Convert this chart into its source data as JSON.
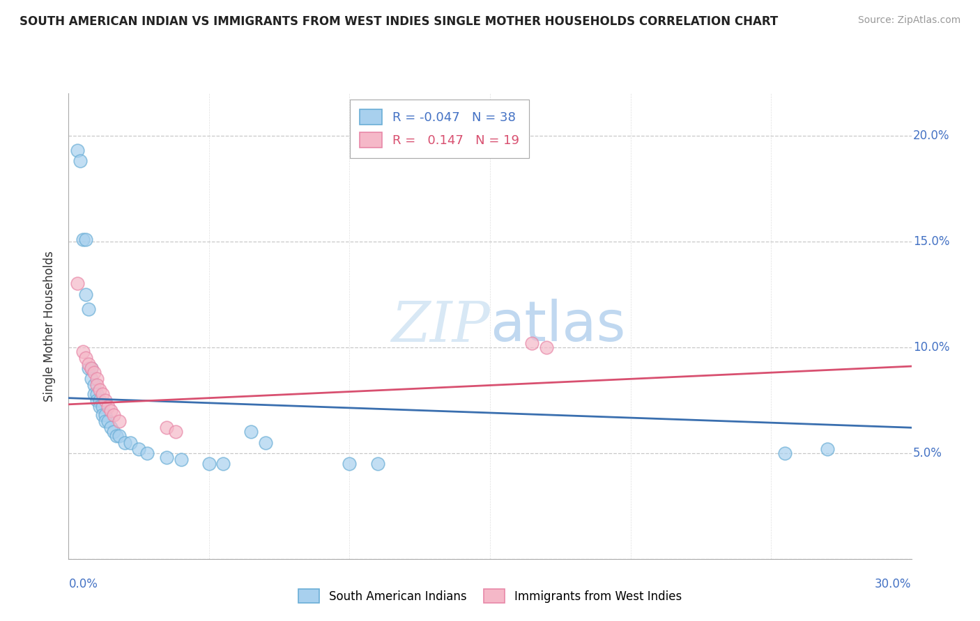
{
  "title": "SOUTH AMERICAN INDIAN VS IMMIGRANTS FROM WEST INDIES SINGLE MOTHER HOUSEHOLDS CORRELATION CHART",
  "source": "Source: ZipAtlas.com",
  "ylabel": "Single Mother Households",
  "blue_label": "South American Indians",
  "pink_label": "Immigrants from West Indies",
  "blue_R": -0.047,
  "blue_N": 38,
  "pink_R": 0.147,
  "pink_N": 19,
  "blue_color": "#a8d0ee",
  "pink_color": "#f5b8c8",
  "blue_edge_color": "#6aaed6",
  "pink_edge_color": "#e888a8",
  "blue_line_color": "#3a6faf",
  "pink_line_color": "#d85070",
  "watermark_color": "#d8e8f5",
  "xlim": [
    0.0,
    0.3
  ],
  "ylim": [
    0.0,
    0.22
  ],
  "blue_line_x": [
    0.0,
    0.3
  ],
  "blue_line_y": [
    0.076,
    0.062
  ],
  "pink_line_x": [
    0.0,
    0.3
  ],
  "pink_line_y": [
    0.073,
    0.091
  ],
  "blue_points": [
    [
      0.003,
      0.193
    ],
    [
      0.004,
      0.188
    ],
    [
      0.005,
      0.151
    ],
    [
      0.006,
      0.151
    ],
    [
      0.006,
      0.125
    ],
    [
      0.007,
      0.118
    ],
    [
      0.007,
      0.09
    ],
    [
      0.008,
      0.09
    ],
    [
      0.008,
      0.085
    ],
    [
      0.009,
      0.082
    ],
    [
      0.009,
      0.078
    ],
    [
      0.01,
      0.078
    ],
    [
      0.01,
      0.075
    ],
    [
      0.011,
      0.075
    ],
    [
      0.011,
      0.072
    ],
    [
      0.012,
      0.072
    ],
    [
      0.012,
      0.068
    ],
    [
      0.013,
      0.068
    ],
    [
      0.013,
      0.065
    ],
    [
      0.014,
      0.065
    ],
    [
      0.015,
      0.062
    ],
    [
      0.016,
      0.06
    ],
    [
      0.017,
      0.058
    ],
    [
      0.018,
      0.058
    ],
    [
      0.02,
      0.055
    ],
    [
      0.022,
      0.055
    ],
    [
      0.025,
      0.052
    ],
    [
      0.028,
      0.05
    ],
    [
      0.035,
      0.048
    ],
    [
      0.04,
      0.047
    ],
    [
      0.05,
      0.045
    ],
    [
      0.055,
      0.045
    ],
    [
      0.065,
      0.06
    ],
    [
      0.07,
      0.055
    ],
    [
      0.1,
      0.045
    ],
    [
      0.11,
      0.045
    ],
    [
      0.255,
      0.05
    ],
    [
      0.27,
      0.052
    ]
  ],
  "pink_points": [
    [
      0.003,
      0.13
    ],
    [
      0.005,
      0.098
    ],
    [
      0.006,
      0.095
    ],
    [
      0.007,
      0.092
    ],
    [
      0.008,
      0.09
    ],
    [
      0.009,
      0.088
    ],
    [
      0.01,
      0.085
    ],
    [
      0.01,
      0.082
    ],
    [
      0.011,
      0.08
    ],
    [
      0.012,
      0.078
    ],
    [
      0.013,
      0.075
    ],
    [
      0.014,
      0.072
    ],
    [
      0.015,
      0.07
    ],
    [
      0.016,
      0.068
    ],
    [
      0.018,
      0.065
    ],
    [
      0.035,
      0.062
    ],
    [
      0.038,
      0.06
    ],
    [
      0.165,
      0.102
    ],
    [
      0.17,
      0.1
    ]
  ]
}
